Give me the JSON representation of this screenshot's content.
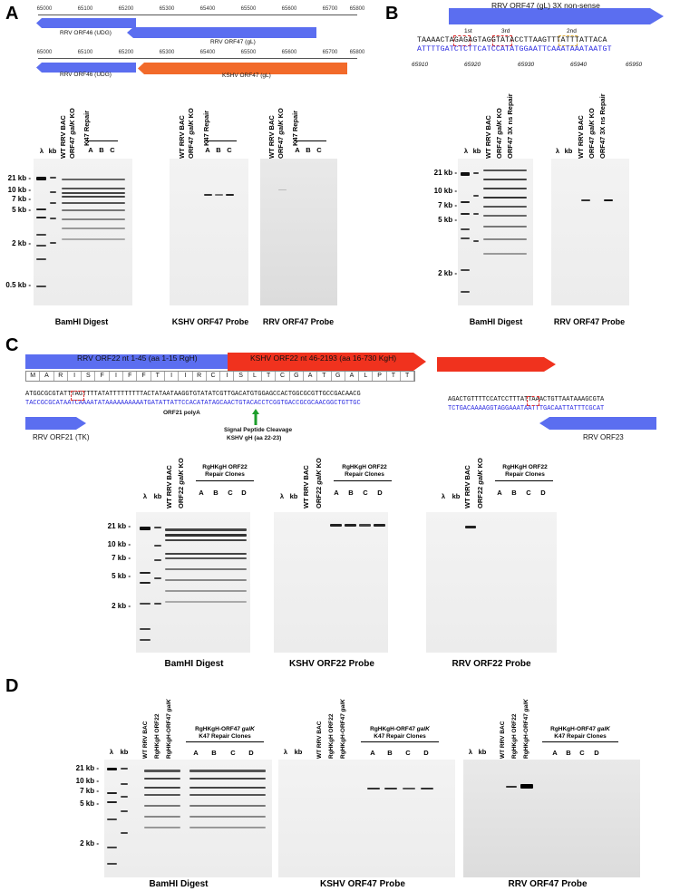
{
  "panels": {
    "A": {
      "label": "A",
      "ruler_ticks": [
        "65000",
        "65100",
        "65200",
        "65300",
        "65400",
        "65500",
        "65600",
        "65700",
        "65800"
      ],
      "track1": {
        "orf46": "RRV ORF46 (UDG)",
        "orf47": "RRV ORF47 (gL)"
      },
      "track2": {
        "orf46": "RRV ORF46 (UDG)",
        "orf47": "KSHV ORF47 (gL)"
      },
      "gel_headers": {
        "lambda": "λ",
        "kb": "kb",
        "wt": "WT RRV BAC",
        "ko_prefix": "ORF47 ",
        "ko_gene": "galK",
        "ko_suffix": " KO",
        "repair": "K47 Repair",
        "lanes": [
          "A",
          "B",
          "C"
        ]
      },
      "sizes": [
        "21 kb -",
        "10 kb -",
        "7 kb -",
        "5 kb -",
        "2 kb -",
        "0.5 kb -"
      ],
      "captions": [
        "BamHI Digest",
        "KSHV ORF47 Probe",
        "RRV ORF47 Probe"
      ]
    },
    "B": {
      "label": "B",
      "bar_title": "RRV ORF47 (gL) 3X non-sense",
      "stops": [
        "1st",
        "3rd",
        "2nd"
      ],
      "seq_top": "TAAAACTAGAGAGTAGGTATACCTTAAGTTTATTTATTACA",
      "seq_bottom": "ATTTTGATCTCTTCATCCATATGGAATTCAAATAAATAATGT",
      "positions": [
        "65910",
        "65920",
        "65930",
        "65940",
        "65950"
      ],
      "gel_headers": {
        "lambda": "λ",
        "kb": "kb",
        "wt": "WT RRV BAC",
        "ko_prefix": "ORF47 ",
        "ko_gene": "galK",
        "ko_suffix": " KO",
        "ns": "ORF47 3X ns Repair"
      },
      "sizes": [
        "21 kb -",
        "10 kb -",
        "7 kb -",
        "5 kb -",
        "2 kb -"
      ],
      "captions": [
        "BamHI Digest",
        "RRV ORF47 Probe"
      ]
    },
    "C": {
      "label": "C",
      "rrv_bar": "RRV ORF22 nt 1-45 (aa 1-15 RgH)",
      "kshv_bar": "KSHV ORF22 nt 46-2193 (aa 16-730 KgH)",
      "aa": [
        "M",
        "A",
        "R",
        "I",
        "S",
        "F",
        "I",
        "F",
        "F",
        "T",
        "I",
        "I",
        "R",
        "C",
        "I",
        "S",
        "L",
        "T",
        "C",
        "G",
        "A",
        "T",
        "G",
        "A",
        "L",
        "P",
        "T",
        "T"
      ],
      "seq1_top": "ATGGCGCGTATTTAGTTTTATATTTTTTTTTACTATAATAAGGTGTATATCGTTGACATGTGGAGCCACTGGCGCGTTGCCGACAACG",
      "seq1_bottom": "TACCGCGCATAATCAAAATATAAAAAAAAAATGATATTATTCCACATATAGCAACTGTACACCTCGGTGACCGCGCAACGGCTGTTGC",
      "seq2_top": "AGACTGTTTTCCATCCTTTATTAAACTGTTAATAAAGCGTA",
      "seq2_bottom": "TCTGACAAAAGGTAGGAAATAATTTGACAATTATTTCGCAT",
      "polyA": "ORF21 polyA",
      "cleavage": "Signal Peptide Cleavage",
      "cleavage2": "KSHV gH (aa 22-23)",
      "orf21": "RRV ORF21 (TK)",
      "orf23": "RRV ORF23",
      "gel_headers": {
        "lambda": "λ",
        "kb": "kb",
        "wt": "WT RRV BAC",
        "ko_prefix": "ORF22 ",
        "ko_gene": "galK",
        "ko_suffix": " KO",
        "repair1": "RgHKgH ORF22",
        "repair2": "Repair Clones",
        "lanes": [
          "A",
          "B",
          "C",
          "D"
        ]
      },
      "sizes": [
        "21 kb -",
        "10 kb -",
        "7 kb -",
        "5 kb -",
        "2 kb -"
      ],
      "captions": [
        "BamHI Digest",
        "KSHV ORF22 Probe",
        "RRV ORF22 Probe"
      ]
    },
    "D": {
      "label": "D",
      "gel_headers": {
        "lambda": "λ",
        "kb": "kb",
        "wt": "WT RRV BAC",
        "rg": "RgHKgH ORF22",
        "ko_prefix": "RgHKgH-ORF47 ",
        "ko_gene": "galK",
        "repair1_prefix": "RgHKgH-ORF47 ",
        "repair1_gene": "galK",
        "repair2": "K47 Repair Clones",
        "lanes": [
          "A",
          "B",
          "C",
          "D"
        ]
      },
      "sizes": [
        "21 kb -",
        "10 kb -",
        "7 kb -",
        "5 kb -",
        "2 kb -"
      ],
      "captions": [
        "BamHI Digest",
        "KSHV ORF47 Probe",
        "RRV ORF47 Probe"
      ]
    }
  },
  "colors": {
    "blue": "#5b6ef0",
    "orange": "#f26a2a",
    "red": "#f0321e",
    "green": "#1d9e2c",
    "seq_blue": "#2a2ae0"
  }
}
